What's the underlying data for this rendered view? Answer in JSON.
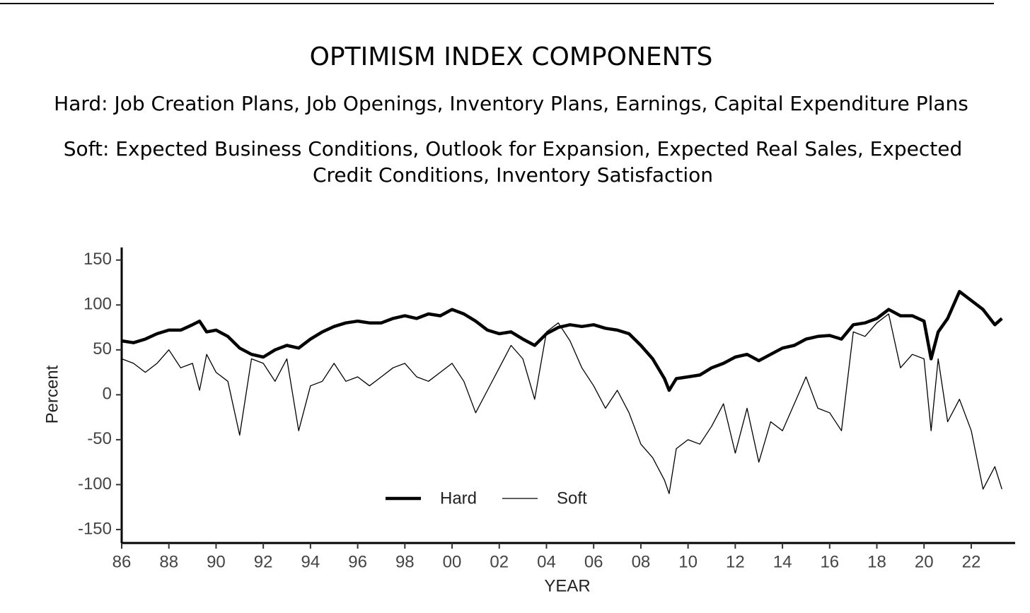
{
  "chart_data": {
    "type": "line",
    "title": "OPTIMISM INDEX COMPONENTS",
    "hard_subtitle": "Hard: Job Creation Plans, Job Openings, Inventory Plans, Earnings, Capital Expenditure Plans",
    "soft_subtitle": "Soft: Expected Business Conditions, Outlook for Expansion, Expected Real Sales, Expected Credit Conditions, Inventory Satisfaction",
    "x_label": "YEAR",
    "y_label": "Percent",
    "x": [
      1986.0,
      1986.5,
      1987.0,
      1987.5,
      1988.0,
      1988.5,
      1989.0,
      1989.3,
      1989.6,
      1990.0,
      1990.5,
      1991.0,
      1991.5,
      1992.0,
      1992.5,
      1993.0,
      1993.5,
      1994.0,
      1994.5,
      1995.0,
      1995.5,
      1996.0,
      1996.5,
      1997.0,
      1997.5,
      1998.0,
      1998.5,
      1999.0,
      1999.5,
      2000.0,
      2000.5,
      2001.0,
      2001.5,
      2002.0,
      2002.5,
      2003.0,
      2003.5,
      2004.0,
      2004.5,
      2005.0,
      2005.5,
      2006.0,
      2006.5,
      2007.0,
      2007.5,
      2008.0,
      2008.5,
      2009.0,
      2009.2,
      2009.5,
      2010.0,
      2010.5,
      2011.0,
      2011.5,
      2012.0,
      2012.5,
      2013.0,
      2013.5,
      2014.0,
      2014.5,
      2015.0,
      2015.5,
      2016.0,
      2016.5,
      2017.0,
      2017.5,
      2018.0,
      2018.5,
      2019.0,
      2019.5,
      2020.0,
      2020.3,
      2020.6,
      2021.0,
      2021.5,
      2022.0,
      2022.5,
      2023.0,
      2023.3
    ],
    "series": [
      {
        "name": "Hard",
        "color": "#000000",
        "values": [
          60,
          58,
          62,
          68,
          72,
          72,
          78,
          82,
          70,
          72,
          65,
          52,
          45,
          42,
          50,
          55,
          52,
          62,
          70,
          76,
          80,
          82,
          80,
          80,
          85,
          88,
          85,
          90,
          88,
          95,
          90,
          82,
          72,
          68,
          70,
          62,
          55,
          68,
          75,
          78,
          76,
          78,
          74,
          72,
          68,
          55,
          40,
          18,
          5,
          18,
          20,
          22,
          30,
          35,
          42,
          45,
          38,
          45,
          52,
          55,
          62,
          65,
          66,
          62,
          78,
          80,
          85,
          95,
          88,
          88,
          82,
          40,
          70,
          85,
          115,
          105,
          95,
          78,
          85
        ]
      },
      {
        "name": "Soft",
        "color": "#000000",
        "values": [
          40,
          35,
          25,
          35,
          50,
          30,
          35,
          5,
          45,
          25,
          15,
          -45,
          40,
          35,
          15,
          40,
          -40,
          10,
          15,
          35,
          15,
          20,
          10,
          20,
          30,
          35,
          20,
          15,
          25,
          35,
          15,
          -20,
          5,
          30,
          55,
          40,
          -5,
          70,
          80,
          60,
          30,
          10,
          -15,
          5,
          -20,
          -55,
          -70,
          -95,
          -110,
          -60,
          -50,
          -55,
          -35,
          -10,
          -65,
          -15,
          -75,
          -30,
          -40,
          -10,
          20,
          -15,
          -20,
          -40,
          70,
          65,
          80,
          90,
          30,
          45,
          40,
          -40,
          40,
          -30,
          -5,
          -40,
          -105,
          -80,
          -105
        ]
      }
    ],
    "xlim": [
      1986,
      2023.86
    ],
    "ylim": [
      -165,
      164
    ],
    "xticks": [
      {
        "value": 1986,
        "label": "86"
      },
      {
        "value": 1988,
        "label": "88"
      },
      {
        "value": 1990,
        "label": "90"
      },
      {
        "value": 1992,
        "label": "92"
      },
      {
        "value": 1994,
        "label": "94"
      },
      {
        "value": 1996,
        "label": "96"
      },
      {
        "value": 1998,
        "label": "98"
      },
      {
        "value": 2000,
        "label": "00"
      },
      {
        "value": 2002,
        "label": "02"
      },
      {
        "value": 2004,
        "label": "04"
      },
      {
        "value": 2006,
        "label": "06"
      },
      {
        "value": 2008,
        "label": "08"
      },
      {
        "value": 2010,
        "label": "10"
      },
      {
        "value": 2012,
        "label": "12"
      },
      {
        "value": 2014,
        "label": "14"
      },
      {
        "value": 2016,
        "label": "16"
      },
      {
        "value": 2018,
        "label": "18"
      },
      {
        "value": 2020,
        "label": "20"
      },
      {
        "value": 2022,
        "label": "22"
      }
    ],
    "yticks": [
      150,
      100,
      50,
      0,
      -50,
      -100,
      -150
    ],
    "grid": false,
    "legend": "bottom"
  }
}
